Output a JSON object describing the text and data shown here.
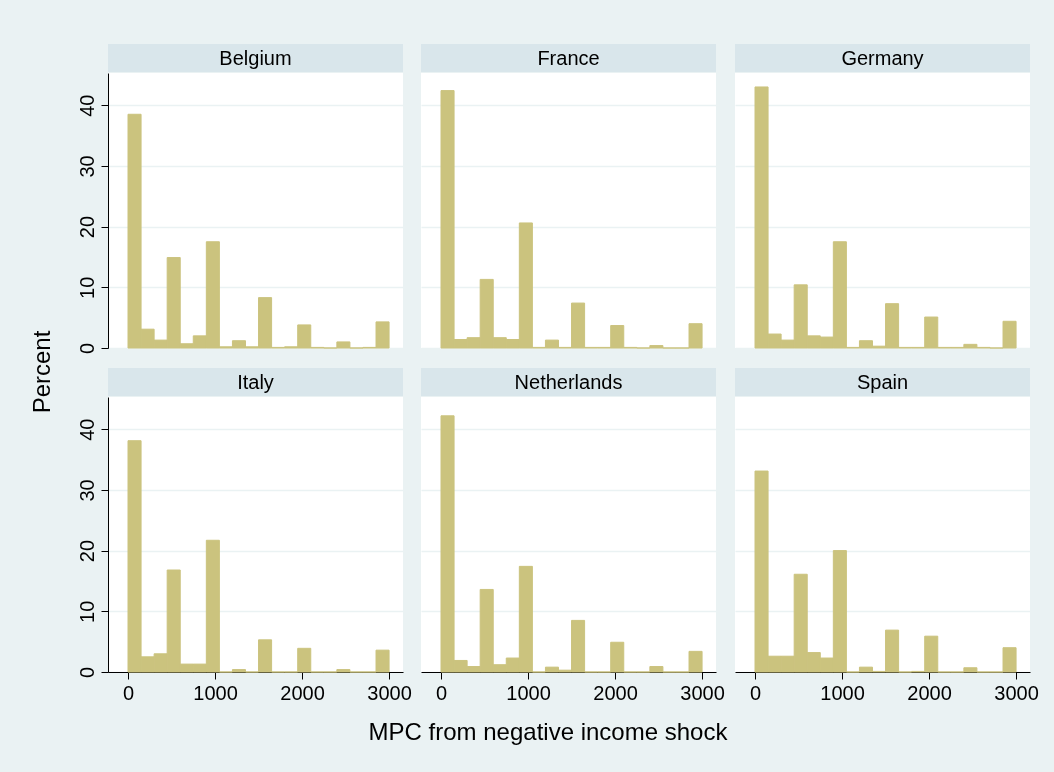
{
  "chart_data": [
    {
      "type": "histogram",
      "title": "Belgium",
      "ylabel": "Percent",
      "color": "#cbc37e",
      "bins": [
        0,
        150,
        300,
        450,
        600,
        750,
        900,
        1050,
        1200,
        1350,
        1500,
        1650,
        1800,
        1950,
        2100,
        2250,
        2400,
        2550,
        2700,
        2850,
        3000
      ],
      "values": [
        38.5,
        3.1,
        1.3,
        14.9,
        0.7,
        2.0,
        17.5,
        0.2,
        1.2,
        0.2,
        8.3,
        0.1,
        0.2,
        3.8,
        0.1,
        0,
        1.0,
        0,
        0.1,
        4.3
      ],
      "xlim": [
        -230,
        3160
      ],
      "xticks": [
        0,
        1000,
        2000,
        3000
      ],
      "ylim": [
        0,
        45.3
      ],
      "yticks": [
        0,
        10,
        20,
        30,
        40
      ],
      "grid": "y",
      "tick_labels": "y"
    },
    {
      "type": "histogram",
      "title": "France",
      "color": "#cbc37e",
      "bins": [
        0,
        150,
        300,
        450,
        600,
        750,
        900,
        1050,
        1200,
        1350,
        1500,
        1650,
        1800,
        1950,
        2100,
        2250,
        2400,
        2550,
        2700,
        2850,
        3000
      ],
      "values": [
        42.4,
        1.4,
        1.7,
        11.3,
        1.7,
        1.4,
        20.6,
        0.1,
        1.3,
        0.1,
        7.4,
        0.1,
        0.1,
        3.7,
        0.1,
        0,
        0.4,
        0,
        0,
        4.0
      ],
      "xlim": [
        -230,
        3160
      ],
      "xticks": [
        0,
        1000,
        2000,
        3000
      ],
      "ylim": [
        0,
        45.3
      ],
      "yticks": [
        0,
        10,
        20,
        30,
        40
      ],
      "grid": "y",
      "tick_labels": false
    },
    {
      "type": "histogram",
      "title": "Germany",
      "color": "#cbc37e",
      "bins": [
        0,
        150,
        300,
        450,
        600,
        750,
        900,
        1050,
        1200,
        1350,
        1500,
        1650,
        1800,
        1950,
        2100,
        2250,
        2400,
        2550,
        2700,
        2850,
        3000
      ],
      "values": [
        43.0,
        2.3,
        1.3,
        10.4,
        2.0,
        1.8,
        17.5,
        0.1,
        1.2,
        0.3,
        7.3,
        0.1,
        0.1,
        5.1,
        0.1,
        0.1,
        0.6,
        0.1,
        0,
        4.4
      ],
      "xlim": [
        -230,
        3160
      ],
      "xticks": [
        0,
        1000,
        2000,
        3000
      ],
      "ylim": [
        0,
        45.3
      ],
      "yticks": [
        0,
        10,
        20,
        30,
        40
      ],
      "grid": "y",
      "tick_labels": false
    },
    {
      "type": "histogram",
      "title": "Italy",
      "color": "#cbc37e",
      "bins": [
        0,
        150,
        300,
        450,
        600,
        750,
        900,
        1050,
        1200,
        1350,
        1500,
        1650,
        1800,
        1950,
        2100,
        2250,
        2400,
        2550,
        2700,
        2850,
        3000
      ],
      "values": [
        38.1,
        2.5,
        3.0,
        16.8,
        1.3,
        1.3,
        21.7,
        0,
        0.4,
        0,
        5.3,
        0,
        0,
        3.9,
        0,
        0,
        0.4,
        0,
        0,
        3.6
      ],
      "xlim": [
        -230,
        3160
      ],
      "xticks": [
        0,
        1000,
        2000,
        3000
      ],
      "ylim": [
        0,
        45.3
      ],
      "yticks": [
        0,
        10,
        20,
        30,
        40
      ],
      "grid": "y"
    },
    {
      "type": "histogram",
      "title": "Netherlands",
      "xlabel": "MPC from negative income shock",
      "color": "#cbc37e",
      "bins": [
        0,
        150,
        300,
        450,
        600,
        750,
        900,
        1050,
        1200,
        1350,
        1500,
        1650,
        1800,
        1950,
        2100,
        2250,
        2400,
        2550,
        2700,
        2850,
        3000
      ],
      "values": [
        42.2,
        1.9,
        0.9,
        13.6,
        1.2,
        2.3,
        17.4,
        0,
        0.8,
        0.3,
        8.5,
        0,
        0,
        4.9,
        0,
        0,
        0.9,
        0,
        0,
        3.4
      ],
      "xlim": [
        -230,
        3160
      ],
      "xticks": [
        0,
        1000,
        2000,
        3000
      ],
      "ylim": [
        0,
        45.3
      ],
      "yticks": [
        0,
        10,
        20,
        30,
        40
      ],
      "grid": "y",
      "tick_labels": "x"
    },
    {
      "type": "histogram",
      "title": "Spain",
      "color": "#cbc37e",
      "bins": [
        0,
        150,
        300,
        450,
        600,
        750,
        900,
        1050,
        1200,
        1350,
        1500,
        1650,
        1800,
        1950,
        2100,
        2250,
        2400,
        2550,
        2700,
        2850,
        3000
      ],
      "values": [
        33.1,
        2.6,
        2.6,
        16.1,
        3.2,
        2.3,
        20.0,
        0,
        0.8,
        0.1,
        6.9,
        0,
        0.1,
        5.9,
        0,
        0,
        0.7,
        0,
        0,
        4.0
      ],
      "xlim": [
        -230,
        3160
      ],
      "xticks": [
        0,
        1000,
        2000,
        3000
      ],
      "ylim": [
        0,
        45.3
      ],
      "yticks": [
        0,
        10,
        20,
        30,
        40
      ],
      "grid": "y",
      "tick_labels": "x"
    }
  ]
}
